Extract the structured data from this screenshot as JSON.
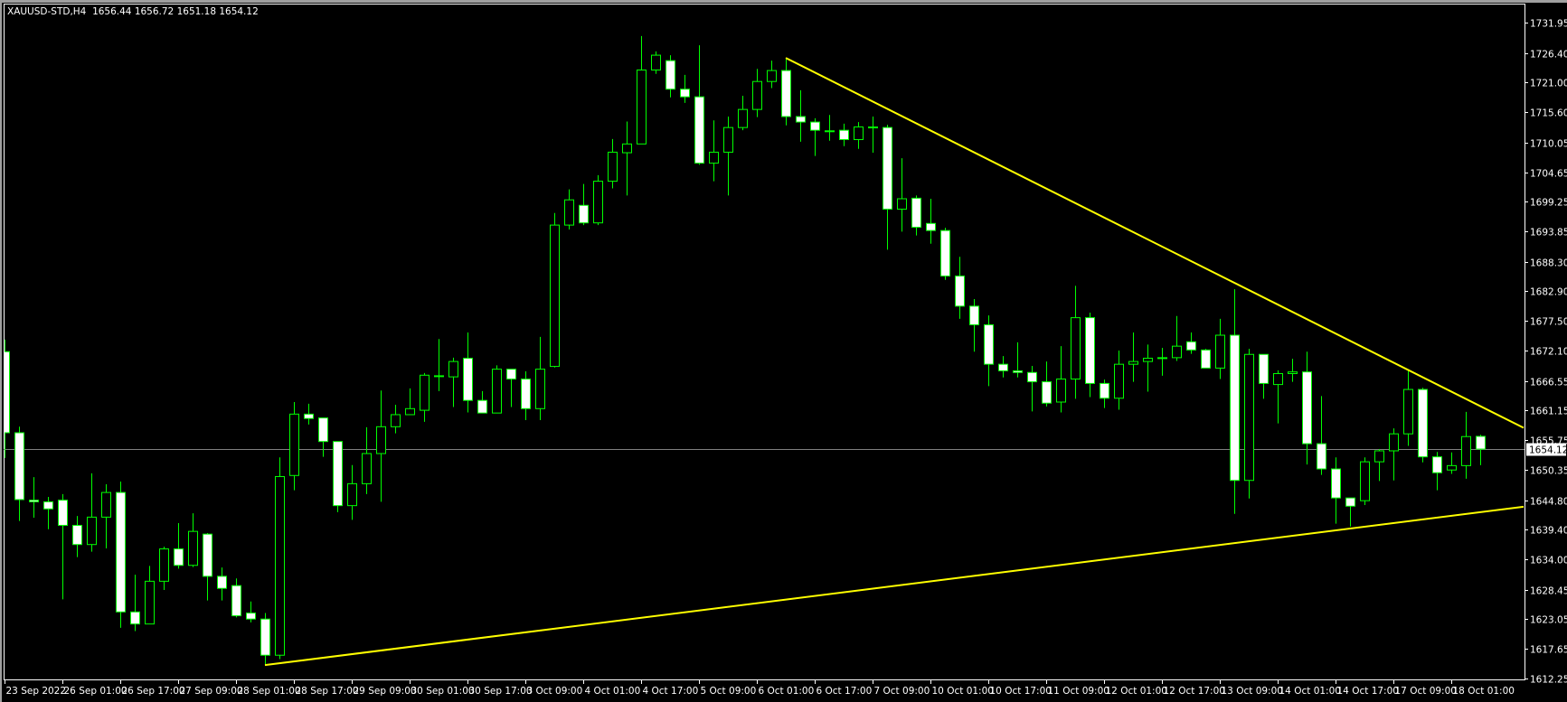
{
  "header": {
    "symbol": "XAUUSD-STD,H4",
    "ohlc": "1656.44 1656.72 1651.18 1654.12"
  },
  "colors": {
    "background": "#000000",
    "candle_outline": "#00ff00",
    "bull_body": "#000000",
    "bear_body": "#ffffff",
    "trendline": "#ffff00",
    "bid_line": "#808080",
    "axis_text": "#ffffff"
  },
  "chart_data": {
    "type": "candlestick",
    "timeframe": "H4",
    "ylim": [
      1612.25,
      1731.95
    ],
    "grid": false,
    "y_ticks": [
      "1731.95",
      "1726.40",
      "1721.00",
      "1715.60",
      "1710.05",
      "1704.65",
      "1699.25",
      "1693.85",
      "1688.30",
      "1682.90",
      "1677.50",
      "1672.10",
      "1666.55",
      "1661.15",
      "1655.75",
      "1650.35",
      "1644.80",
      "1639.40",
      "1634.00",
      "1628.45",
      "1623.05",
      "1617.65",
      "1612.25"
    ],
    "x_ticks": [
      {
        "bar": 0,
        "label": "23 Sep 2022"
      },
      {
        "bar": 4,
        "label": "26 Sep 01:00"
      },
      {
        "bar": 8,
        "label": "26 Sep 17:00"
      },
      {
        "bar": 12,
        "label": "27 Sep 09:00"
      },
      {
        "bar": 16,
        "label": "28 Sep 01:00"
      },
      {
        "bar": 20,
        "label": "28 Sep 17:00"
      },
      {
        "bar": 24,
        "label": "29 Sep 09:00"
      },
      {
        "bar": 28,
        "label": "30 Sep 01:00"
      },
      {
        "bar": 32,
        "label": "30 Sep 17:00"
      },
      {
        "bar": 36,
        "label": "3 Oct 09:00"
      },
      {
        "bar": 40,
        "label": "4 Oct 01:00"
      },
      {
        "bar": 44,
        "label": "4 Oct 17:00"
      },
      {
        "bar": 48,
        "label": "5 Oct 09:00"
      },
      {
        "bar": 52,
        "label": "6 Oct 01:00"
      },
      {
        "bar": 56,
        "label": "6 Oct 17:00"
      },
      {
        "bar": 60,
        "label": "7 Oct 09:00"
      },
      {
        "bar": 64,
        "label": "10 Oct 01:00"
      },
      {
        "bar": 68,
        "label": "10 Oct 17:00"
      },
      {
        "bar": 72,
        "label": "11 Oct 09:00"
      },
      {
        "bar": 76,
        "label": "12 Oct 01:00"
      },
      {
        "bar": 80,
        "label": "12 Oct 17:00"
      },
      {
        "bar": 84,
        "label": "13 Oct 09:00"
      },
      {
        "bar": 88,
        "label": "14 Oct 01:00"
      },
      {
        "bar": 92,
        "label": "14 Oct 17:00"
      },
      {
        "bar": 96,
        "label": "17 Oct 09:00"
      },
      {
        "bar": 100,
        "label": "18 Oct 01:00"
      }
    ],
    "bid": {
      "price": 1654.12,
      "label": "1654.12"
    },
    "trendlines": [
      {
        "from": {
          "bar": 54,
          "price": 1725.5
        },
        "to": {
          "bar": 105,
          "price": 1658.0
        }
      },
      {
        "from": {
          "bar": 18,
          "price": 1614.7
        },
        "to": {
          "bar": 105,
          "price": 1643.6
        }
      }
    ],
    "ohlc_fields": [
      "open",
      "high",
      "low",
      "close"
    ],
    "candles": [
      [
        1671.9,
        1674.1,
        1652.5,
        1657.1
      ],
      [
        1657.1,
        1658.2,
        1641.0,
        1644.9
      ],
      [
        1644.8,
        1649.0,
        1641.6,
        1644.5
      ],
      [
        1644.5,
        1645.4,
        1639.5,
        1643.2
      ],
      [
        1644.8,
        1645.9,
        1626.7,
        1640.2
      ],
      [
        1640.2,
        1641.9,
        1634.4,
        1636.7
      ],
      [
        1636.7,
        1649.7,
        1635.4,
        1641.7
      ],
      [
        1641.7,
        1647.7,
        1636.0,
        1646.2
      ],
      [
        1646.2,
        1648.2,
        1621.5,
        1624.4
      ],
      [
        1624.4,
        1631.2,
        1620.9,
        1622.2
      ],
      [
        1622.2,
        1632.8,
        1622.2,
        1630.0
      ],
      [
        1630.0,
        1636.3,
        1628.4,
        1635.9
      ],
      [
        1635.9,
        1640.6,
        1632.3,
        1632.9
      ],
      [
        1632.9,
        1642.4,
        1632.6,
        1639.1
      ],
      [
        1638.6,
        1638.8,
        1626.5,
        1630.9
      ],
      [
        1630.9,
        1632.5,
        1626.5,
        1628.7
      ],
      [
        1629.2,
        1630.5,
        1623.4,
        1623.7
      ],
      [
        1624.2,
        1626.3,
        1622.5,
        1623.1
      ],
      [
        1623.1,
        1624.2,
        1614.7,
        1616.5
      ],
      [
        1616.5,
        1652.6,
        1615.8,
        1649.1
      ],
      [
        1649.3,
        1662.7,
        1646.6,
        1660.5
      ],
      [
        1660.5,
        1662.4,
        1658.6,
        1659.7
      ],
      [
        1659.8,
        1659.8,
        1652.7,
        1655.5
      ],
      [
        1655.5,
        1655.5,
        1642.6,
        1643.8
      ],
      [
        1643.8,
        1651.2,
        1641.2,
        1647.8
      ],
      [
        1647.8,
        1658.1,
        1645.9,
        1653.3
      ],
      [
        1653.3,
        1664.8,
        1644.5,
        1658.2
      ],
      [
        1658.2,
        1662.2,
        1657.0,
        1660.4
      ],
      [
        1660.4,
        1665.2,
        1660.4,
        1661.5
      ],
      [
        1661.2,
        1668.0,
        1659.1,
        1667.6
      ],
      [
        1667.5,
        1674.2,
        1664.7,
        1667.5
      ],
      [
        1667.3,
        1670.8,
        1661.8,
        1670.1
      ],
      [
        1670.7,
        1675.4,
        1660.8,
        1663.0
      ],
      [
        1663.0,
        1664.7,
        1660.7,
        1660.7
      ],
      [
        1660.7,
        1669.4,
        1660.7,
        1668.7
      ],
      [
        1668.7,
        1668.7,
        1661.8,
        1666.9
      ],
      [
        1666.9,
        1668.3,
        1659.4,
        1661.5
      ],
      [
        1661.5,
        1674.6,
        1659.4,
        1668.7
      ],
      [
        1669.2,
        1697.2,
        1669.0,
        1695.0
      ],
      [
        1695.0,
        1701.5,
        1694.2,
        1699.6
      ],
      [
        1698.6,
        1702.5,
        1695.0,
        1695.4
      ],
      [
        1695.4,
        1704.1,
        1695.0,
        1703.0
      ],
      [
        1703.0,
        1710.7,
        1701.7,
        1708.3
      ],
      [
        1708.2,
        1713.9,
        1700.4,
        1709.8
      ],
      [
        1709.8,
        1729.5,
        1709.8,
        1723.3
      ],
      [
        1723.3,
        1726.7,
        1722.6,
        1726.0
      ],
      [
        1725.0,
        1726.0,
        1718.3,
        1719.8
      ],
      [
        1719.8,
        1722.4,
        1717.3,
        1718.4
      ],
      [
        1718.4,
        1727.8,
        1706.0,
        1706.3
      ],
      [
        1706.3,
        1714.1,
        1703.0,
        1708.3
      ],
      [
        1708.3,
        1714.8,
        1700.4,
        1712.8
      ],
      [
        1712.8,
        1718.6,
        1712.3,
        1716.1
      ],
      [
        1716.1,
        1723.5,
        1714.7,
        1721.2
      ],
      [
        1721.2,
        1725.0,
        1720.0,
        1723.2
      ],
      [
        1723.2,
        1725.5,
        1713.2,
        1714.8
      ],
      [
        1714.8,
        1719.6,
        1710.2,
        1713.8
      ],
      [
        1713.8,
        1714.5,
        1707.6,
        1712.3
      ],
      [
        1712.2,
        1715.1,
        1710.4,
        1712.2
      ],
      [
        1712.3,
        1713.5,
        1709.4,
        1710.6
      ],
      [
        1710.6,
        1713.8,
        1708.9,
        1712.9
      ],
      [
        1712.9,
        1714.8,
        1708.2,
        1712.9
      ],
      [
        1712.8,
        1713.3,
        1690.5,
        1697.9
      ],
      [
        1697.9,
        1707.2,
        1693.8,
        1699.8
      ],
      [
        1699.9,
        1700.4,
        1693.1,
        1694.6
      ],
      [
        1695.3,
        1699.8,
        1691.6,
        1694.0
      ],
      [
        1694.0,
        1694.5,
        1685.0,
        1685.7
      ],
      [
        1685.7,
        1689.2,
        1677.9,
        1680.2
      ],
      [
        1680.2,
        1681.5,
        1671.9,
        1676.8
      ],
      [
        1676.8,
        1678.5,
        1665.6,
        1669.6
      ],
      [
        1669.6,
        1671.1,
        1667.2,
        1668.4
      ],
      [
        1668.4,
        1673.6,
        1667.2,
        1668.1
      ],
      [
        1668.1,
        1669.3,
        1661.0,
        1666.4
      ],
      [
        1666.4,
        1670.1,
        1661.9,
        1662.5
      ],
      [
        1662.7,
        1672.9,
        1660.8,
        1666.9
      ],
      [
        1666.9,
        1683.9,
        1663.3,
        1678.1
      ],
      [
        1678.1,
        1679.0,
        1663.6,
        1666.1
      ],
      [
        1666.1,
        1666.8,
        1661.6,
        1663.4
      ],
      [
        1663.4,
        1672.1,
        1661.3,
        1669.6
      ],
      [
        1669.6,
        1675.4,
        1666.4,
        1670.1
      ],
      [
        1670.1,
        1673.2,
        1664.6,
        1670.7
      ],
      [
        1670.8,
        1672.6,
        1667.5,
        1670.8
      ],
      [
        1670.8,
        1678.4,
        1670.2,
        1672.9
      ],
      [
        1673.7,
        1675.4,
        1671.5,
        1672.2
      ],
      [
        1672.2,
        1672.4,
        1668.9,
        1668.9
      ],
      [
        1668.9,
        1677.9,
        1666.9,
        1674.9
      ],
      [
        1674.9,
        1683.3,
        1642.3,
        1648.4
      ],
      [
        1648.4,
        1672.4,
        1645.1,
        1671.4
      ],
      [
        1671.4,
        1671.4,
        1663.3,
        1666.1
      ],
      [
        1665.9,
        1668.5,
        1658.8,
        1667.9
      ],
      [
        1667.9,
        1670.6,
        1666.4,
        1668.2
      ],
      [
        1668.2,
        1671.9,
        1651.3,
        1655.1
      ],
      [
        1655.1,
        1663.8,
        1649.4,
        1650.5
      ],
      [
        1650.5,
        1652.6,
        1640.5,
        1645.2
      ],
      [
        1645.2,
        1645.2,
        1640.0,
        1643.7
      ],
      [
        1644.7,
        1652.6,
        1643.9,
        1651.8
      ],
      [
        1651.8,
        1654.1,
        1648.3,
        1653.8
      ],
      [
        1653.8,
        1657.9,
        1648.4,
        1656.9
      ],
      [
        1656.9,
        1668.5,
        1654.7,
        1665.0
      ],
      [
        1665.0,
        1665.3,
        1651.7,
        1652.7
      ],
      [
        1652.7,
        1653.6,
        1646.6,
        1649.8
      ],
      [
        1650.3,
        1653.5,
        1649.6,
        1651.1
      ],
      [
        1651.1,
        1660.9,
        1648.7,
        1656.4
      ],
      [
        1656.44,
        1656.72,
        1651.18,
        1654.12
      ]
    ]
  }
}
